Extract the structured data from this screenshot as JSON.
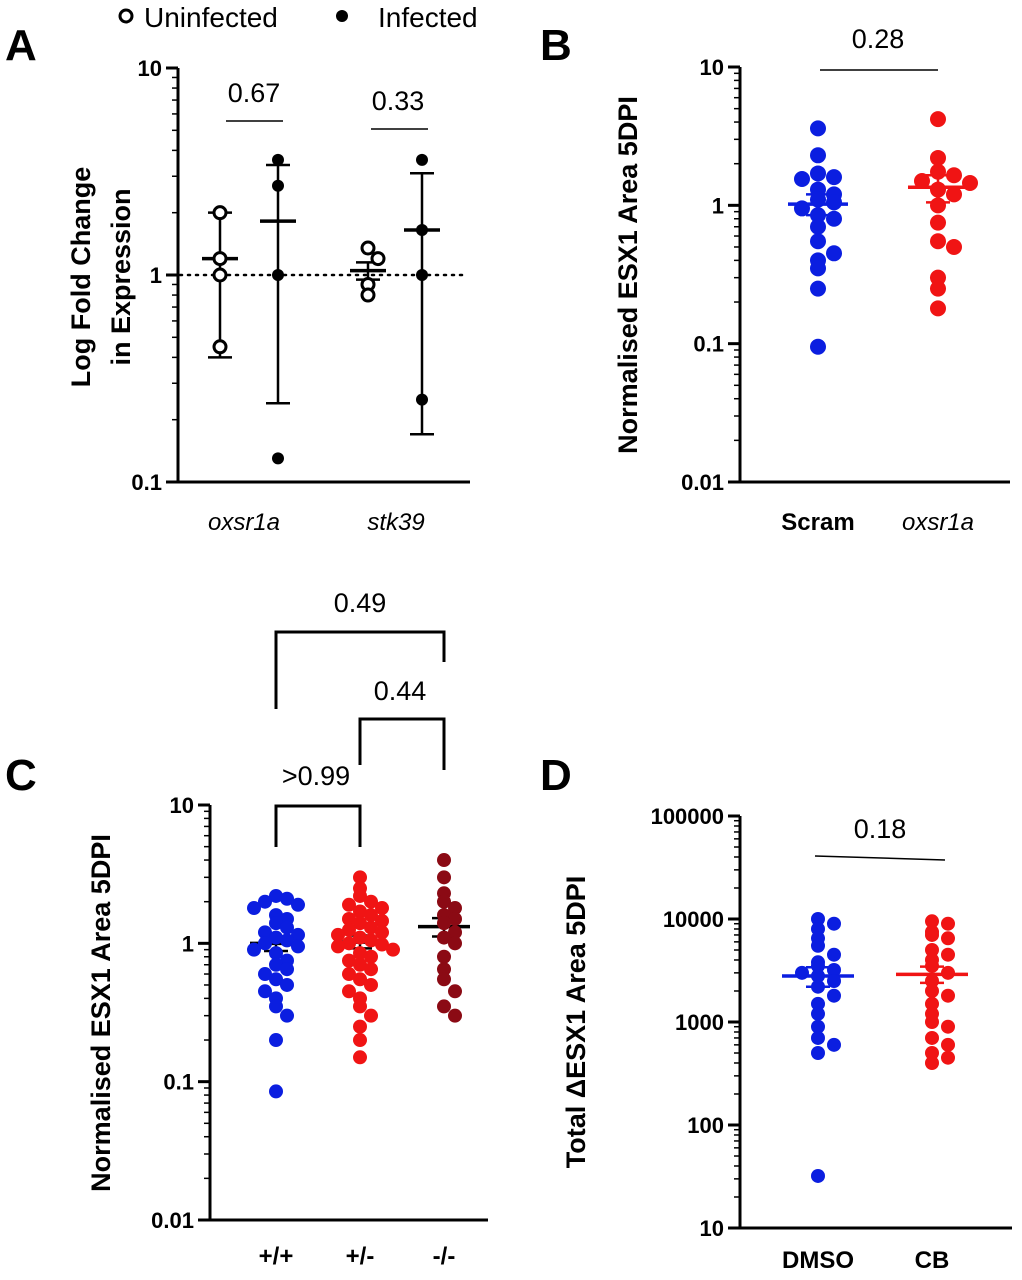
{
  "legend": {
    "uninfected": "Uninfected",
    "infected": "Infected"
  },
  "chart_data": [
    {
      "panel": "A",
      "type": "scatter",
      "ylabel_lines": [
        "Log Fold Change",
        "in Expression"
      ],
      "yscale": "log",
      "ylim": [
        0.1,
        10
      ],
      "yticks": [
        "10",
        "1",
        "0.1"
      ],
      "reference_line": 1,
      "categories": [
        "oxsr1a",
        "stk39"
      ],
      "series": [
        {
          "name": "Uninfected",
          "marker": "open",
          "color": "#000000",
          "groups": [
            {
              "category": "oxsr1a",
              "points": [
                2.0,
                1.2,
                1.0,
                0.45
              ],
              "mean": 1.2,
              "err_low": 0.4,
              "err_high": 2.0
            },
            {
              "category": "stk39",
              "points": [
                1.35,
                1.2,
                0.9,
                0.8
              ],
              "mean": 1.05,
              "err_low": 0.95,
              "err_high": 1.15
            }
          ]
        },
        {
          "name": "Infected",
          "marker": "filled",
          "color": "#000000",
          "groups": [
            {
              "category": "oxsr1a",
              "points": [
                3.6,
                2.7,
                1.0,
                0.13
              ],
              "mean": 1.82,
              "err_low": 0.24,
              "err_high": 3.4
            },
            {
              "category": "stk39",
              "points": [
                3.6,
                1.65,
                1.0,
                0.25
              ],
              "mean": 1.65,
              "err_low": 0.17,
              "err_high": 3.1
            }
          ]
        }
      ],
      "comparisons": [
        {
          "between": [
            "oxsr1a-Uninfected",
            "oxsr1a-Infected"
          ],
          "p": "0.67"
        },
        {
          "between": [
            "stk39-Uninfected",
            "stk39-Infected"
          ],
          "p": "0.33"
        }
      ]
    },
    {
      "panel": "B",
      "type": "scatter",
      "ylabel": "Normalised ESX1 Area 5DPI",
      "yscale": "log",
      "ylim": [
        0.01,
        10
      ],
      "yticks": [
        "10",
        "1",
        "0.1",
        "0.01"
      ],
      "categories": [
        "Scram",
        "oxsr1a"
      ],
      "groups": [
        {
          "category": "Scram",
          "color": "#0b1ee0",
          "points": [
            3.6,
            2.3,
            1.7,
            1.6,
            1.55,
            1.3,
            1.2,
            1.1,
            1.05,
            0.95,
            0.85,
            0.8,
            0.7,
            0.55,
            0.45,
            0.4,
            0.35,
            0.25,
            0.095
          ],
          "mean": 1.02,
          "err_low": 0.85,
          "err_high": 1.2
        },
        {
          "category": "oxsr1a",
          "color": "#f01414",
          "points": [
            4.2,
            2.2,
            1.75,
            1.65,
            1.5,
            1.45,
            1.3,
            1.2,
            1.0,
            0.75,
            0.55,
            0.5,
            0.3,
            0.25,
            0.18
          ],
          "mean": 1.35,
          "err_low": 1.05,
          "err_high": 1.65
        }
      ],
      "comparisons": [
        {
          "between": [
            "Scram",
            "oxsr1a"
          ],
          "p": "0.28"
        }
      ]
    },
    {
      "panel": "C",
      "type": "scatter",
      "ylabel": "Normalised ESX1 Area 5DPI",
      "yscale": "log",
      "ylim": [
        0.01,
        10
      ],
      "yticks": [
        "10",
        "1",
        "0.1",
        "0.01"
      ],
      "categories": [
        "+/+",
        "+/-",
        "-/-"
      ],
      "groups": [
        {
          "category": "+/+",
          "color": "#0b1ee0",
          "points": [
            2.2,
            2.1,
            2.0,
            1.9,
            1.8,
            1.6,
            1.5,
            1.4,
            1.3,
            1.2,
            1.15,
            1.1,
            1.05,
            1.0,
            0.95,
            0.9,
            0.85,
            0.75,
            0.7,
            0.65,
            0.6,
            0.55,
            0.5,
            0.45,
            0.4,
            0.35,
            0.3,
            0.2,
            0.085
          ],
          "mean": 1.0,
          "err_low": 0.88,
          "err_high": 1.12
        },
        {
          "category": "+/-",
          "color": "#f01414",
          "points": [
            3.0,
            2.5,
            2.2,
            2.0,
            1.9,
            1.8,
            1.7,
            1.6,
            1.5,
            1.45,
            1.4,
            1.3,
            1.25,
            1.2,
            1.15,
            1.1,
            1.05,
            1.0,
            0.98,
            0.95,
            0.9,
            0.85,
            0.8,
            0.75,
            0.7,
            0.65,
            0.6,
            0.55,
            0.5,
            0.45,
            0.4,
            0.35,
            0.3,
            0.25,
            0.2,
            0.15
          ],
          "mean": 1.02,
          "err_low": 0.92,
          "err_high": 1.14
        },
        {
          "category": "-/-",
          "color": "#8b0a14",
          "points": [
            4.0,
            3.0,
            2.3,
            2.0,
            1.8,
            1.6,
            1.5,
            1.4,
            1.2,
            1.1,
            1.0,
            0.8,
            0.65,
            0.55,
            0.45,
            0.35,
            0.3
          ],
          "mean": 1.32,
          "err_low": 1.12,
          "err_high": 1.52
        }
      ],
      "comparisons": [
        {
          "between": [
            "+/+",
            "-/-"
          ],
          "p": "0.49"
        },
        {
          "between": [
            "+/-",
            "-/-"
          ],
          "p": "0.44"
        },
        {
          "between": [
            "+/+",
            "+/-"
          ],
          "p": ">0.99"
        }
      ]
    },
    {
      "panel": "D",
      "type": "scatter",
      "ylabel": "Total ΔESX1 Area 5DPI",
      "yscale": "log",
      "ylim": [
        10,
        100000
      ],
      "yticks": [
        "100000",
        "10000",
        "1000",
        "100",
        "10"
      ],
      "categories": [
        "DMSO",
        "CB"
      ],
      "groups": [
        {
          "category": "DMSO",
          "color": "#0b1ee0",
          "points": [
            10000,
            9000,
            8000,
            6500,
            5500,
            4500,
            3800,
            3500,
            3200,
            3000,
            2800,
            2500,
            2200,
            1800,
            1500,
            1200,
            900,
            700,
            600,
            500,
            32
          ],
          "mean": 2800,
          "err_low": 2200,
          "err_high": 3400
        },
        {
          "category": "CB",
          "color": "#f01414",
          "points": [
            9500,
            9000,
            7500,
            7000,
            6500,
            5000,
            4500,
            4000,
            3500,
            3000,
            2500,
            2000,
            1800,
            1500,
            1200,
            1000,
            900,
            700,
            600,
            500,
            450,
            400
          ],
          "mean": 2900,
          "err_low": 2400,
          "err_high": 3450
        }
      ],
      "comparisons": [
        {
          "between": [
            "DMSO",
            "CB"
          ],
          "p": "0.18"
        }
      ]
    }
  ]
}
